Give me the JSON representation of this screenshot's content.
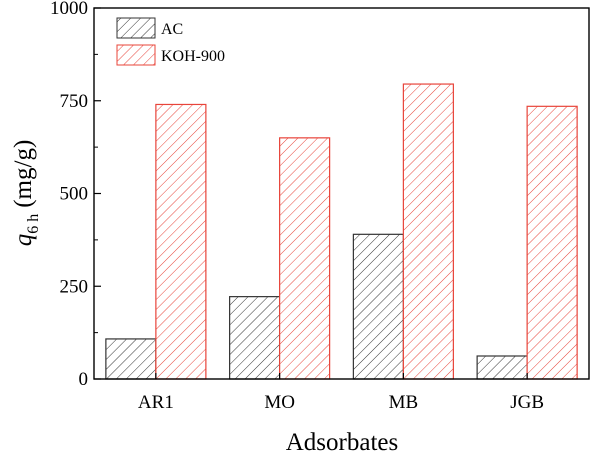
{
  "chart_data": {
    "type": "bar",
    "categories": [
      "AR1",
      "MO",
      "MB",
      "JGB"
    ],
    "series": [
      {
        "name": "AC",
        "values": [
          108,
          222,
          390,
          62
        ],
        "color": "#333333",
        "hatch": "diagonal"
      },
      {
        "name": "KOH-900",
        "values": [
          740,
          650,
          795,
          735
        ],
        "color": "#e8443a",
        "hatch": "diagonal"
      }
    ],
    "xlabel": "Adsorbates",
    "ylabel": {
      "symbol": "q",
      "subscript": "6 h",
      "unit": "(mg/g)"
    },
    "ylim": [
      0,
      1000
    ],
    "yticks": [
      "0",
      "250",
      "500",
      "750",
      "1000"
    ],
    "ytick_values": [
      0,
      250,
      500,
      750,
      1000
    ],
    "grid": false,
    "legend_position": "top-left"
  }
}
